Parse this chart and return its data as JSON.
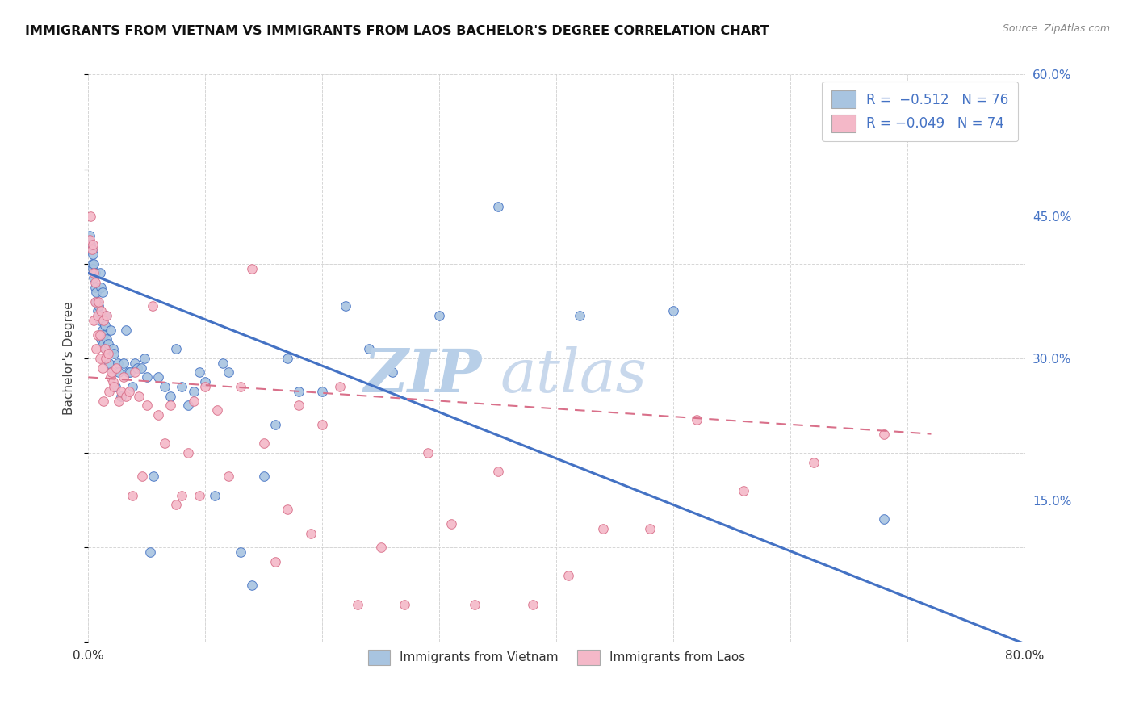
{
  "title": "IMMIGRANTS FROM VIETNAM VS IMMIGRANTS FROM LAOS BACHELOR'S DEGREE CORRELATION CHART",
  "source": "Source: ZipAtlas.com",
  "ylabel": "Bachelor's Degree",
  "x_min": 0.0,
  "x_max": 0.8,
  "y_min": 0.0,
  "y_max": 0.6,
  "color_vietnam": "#a8c4e0",
  "color_laos": "#f4b8c8",
  "color_line_vietnam": "#4472c4",
  "color_line_laos": "#d9708a",
  "watermark_color": "#dce8f5",
  "background_color": "#ffffff",
  "grid_color": "#cccccc",
  "vietnam_x": [
    0.001,
    0.002,
    0.003,
    0.003,
    0.004,
    0.004,
    0.005,
    0.005,
    0.006,
    0.006,
    0.007,
    0.007,
    0.008,
    0.008,
    0.009,
    0.009,
    0.01,
    0.01,
    0.011,
    0.011,
    0.012,
    0.012,
    0.013,
    0.013,
    0.014,
    0.015,
    0.015,
    0.016,
    0.017,
    0.018,
    0.019,
    0.02,
    0.021,
    0.022,
    0.023,
    0.025,
    0.026,
    0.028,
    0.03,
    0.032,
    0.034,
    0.036,
    0.038,
    0.04,
    0.042,
    0.045,
    0.048,
    0.05,
    0.053,
    0.056,
    0.06,
    0.065,
    0.07,
    0.075,
    0.08,
    0.085,
    0.09,
    0.095,
    0.1,
    0.108,
    0.115,
    0.12,
    0.13,
    0.14,
    0.15,
    0.16,
    0.17,
    0.18,
    0.2,
    0.22,
    0.24,
    0.26,
    0.3,
    0.35,
    0.42,
    0.5,
    0.68
  ],
  "vietnam_y": [
    0.43,
    0.42,
    0.415,
    0.4,
    0.41,
    0.395,
    0.4,
    0.385,
    0.375,
    0.39,
    0.36,
    0.37,
    0.35,
    0.36,
    0.355,
    0.345,
    0.39,
    0.34,
    0.32,
    0.375,
    0.33,
    0.37,
    0.325,
    0.315,
    0.335,
    0.345,
    0.31,
    0.32,
    0.315,
    0.295,
    0.33,
    0.285,
    0.31,
    0.305,
    0.27,
    0.295,
    0.285,
    0.26,
    0.295,
    0.33,
    0.285,
    0.285,
    0.27,
    0.295,
    0.29,
    0.29,
    0.3,
    0.28,
    0.095,
    0.175,
    0.28,
    0.27,
    0.26,
    0.31,
    0.27,
    0.25,
    0.265,
    0.285,
    0.275,
    0.155,
    0.295,
    0.285,
    0.095,
    0.06,
    0.175,
    0.23,
    0.3,
    0.265,
    0.265,
    0.355,
    0.31,
    0.285,
    0.345,
    0.46,
    0.345,
    0.35,
    0.13
  ],
  "laos_x": [
    0.001,
    0.002,
    0.003,
    0.004,
    0.005,
    0.005,
    0.006,
    0.006,
    0.007,
    0.008,
    0.008,
    0.009,
    0.01,
    0.01,
    0.011,
    0.012,
    0.013,
    0.013,
    0.014,
    0.015,
    0.016,
    0.017,
    0.018,
    0.019,
    0.02,
    0.021,
    0.022,
    0.024,
    0.026,
    0.028,
    0.03,
    0.032,
    0.035,
    0.038,
    0.04,
    0.043,
    0.046,
    0.05,
    0.055,
    0.06,
    0.065,
    0.07,
    0.075,
    0.08,
    0.085,
    0.09,
    0.095,
    0.1,
    0.11,
    0.12,
    0.13,
    0.14,
    0.15,
    0.16,
    0.17,
    0.18,
    0.19,
    0.2,
    0.215,
    0.23,
    0.25,
    0.27,
    0.29,
    0.31,
    0.33,
    0.35,
    0.38,
    0.41,
    0.44,
    0.48,
    0.52,
    0.56,
    0.62,
    0.68
  ],
  "laos_y": [
    0.425,
    0.45,
    0.415,
    0.42,
    0.39,
    0.34,
    0.38,
    0.36,
    0.31,
    0.345,
    0.325,
    0.36,
    0.3,
    0.325,
    0.35,
    0.29,
    0.255,
    0.34,
    0.31,
    0.3,
    0.345,
    0.305,
    0.265,
    0.28,
    0.285,
    0.275,
    0.27,
    0.29,
    0.255,
    0.265,
    0.28,
    0.26,
    0.265,
    0.155,
    0.285,
    0.26,
    0.175,
    0.25,
    0.355,
    0.24,
    0.21,
    0.25,
    0.145,
    0.155,
    0.2,
    0.255,
    0.155,
    0.27,
    0.245,
    0.175,
    0.27,
    0.395,
    0.21,
    0.085,
    0.14,
    0.25,
    0.115,
    0.23,
    0.27,
    0.04,
    0.1,
    0.04,
    0.2,
    0.125,
    0.04,
    0.18,
    0.04,
    0.07,
    0.12,
    0.12,
    0.235,
    0.16,
    0.19,
    0.22
  ],
  "vietnam_trend_x": [
    0.0,
    0.8
  ],
  "vietnam_trend_y": [
    0.39,
    -0.002
  ],
  "laos_trend_x": [
    0.0,
    0.72
  ],
  "laos_trend_y": [
    0.28,
    0.22
  ]
}
